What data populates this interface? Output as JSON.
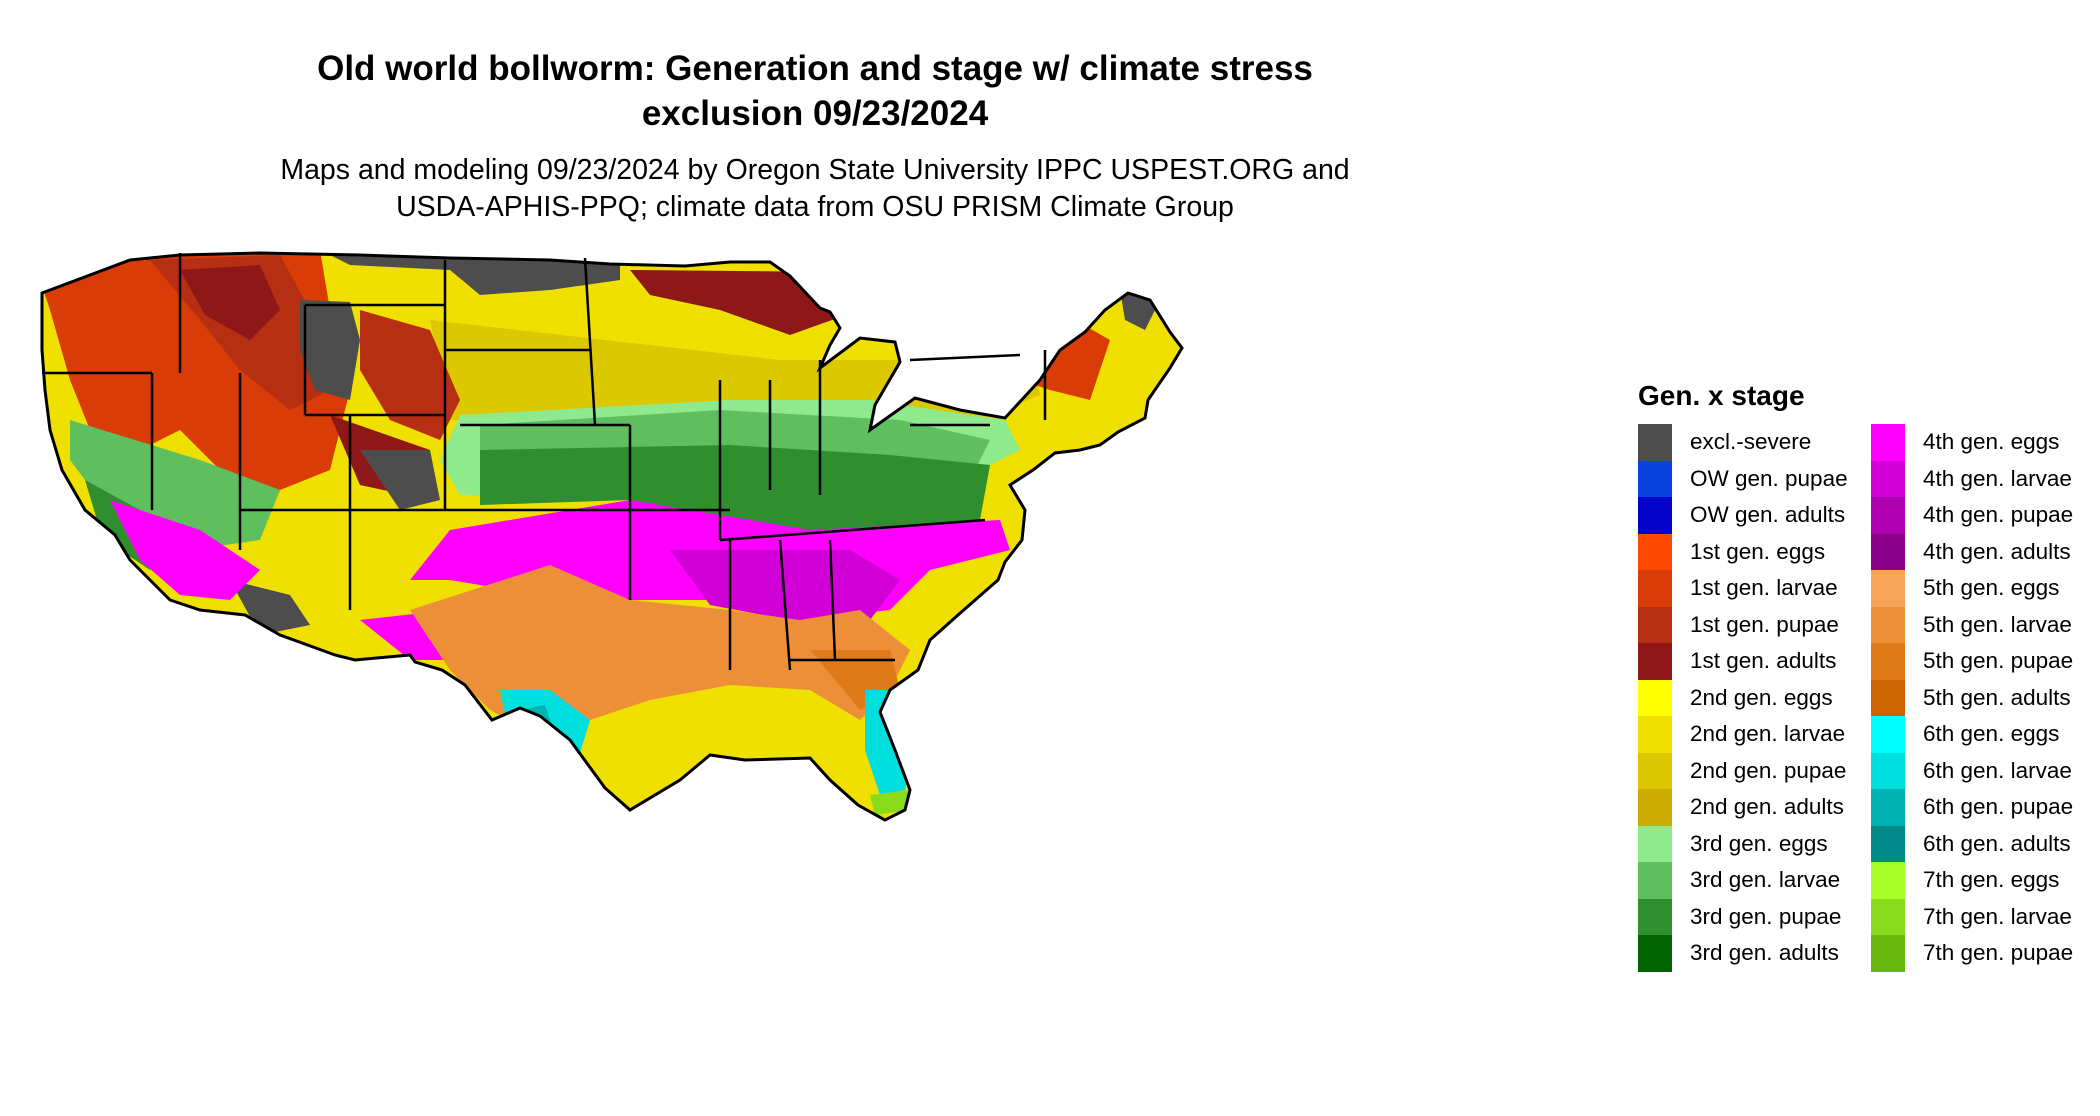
{
  "title_line1": "Old world bollworm: Generation and stage w/ climate stress",
  "title_line2": "exclusion 09/23/2024",
  "subtitle_line1": "Maps and modeling 09/23/2024 by Oregon State University IPPC USPEST.ORG and",
  "subtitle_line2": "USDA-APHIS-PPQ; climate data from OSU PRISM Climate Group",
  "legend": {
    "title": "Gen. x stage",
    "items": [
      {
        "label": "excl.-severe",
        "color": "#4d4d4d"
      },
      {
        "label": "OW gen. pupae",
        "color": "#0a42df"
      },
      {
        "label": "OW gen. adults",
        "color": "#0202c8"
      },
      {
        "label": "1st gen. eggs",
        "color": "#fd4a00"
      },
      {
        "label": "1st gen. larvae",
        "color": "#d93c06"
      },
      {
        "label": "1st gen. pupae",
        "color": "#b72f12"
      },
      {
        "label": "1st gen. adults",
        "color": "#8e1818"
      },
      {
        "label": "2nd gen. eggs",
        "color": "#ffff00"
      },
      {
        "label": "2nd gen. larvae",
        "color": "#efe000"
      },
      {
        "label": "2nd gen. pupae",
        "color": "#dcc800"
      },
      {
        "label": "2nd gen. adults",
        "color": "#ccac00"
      },
      {
        "label": "3rd gen. eggs",
        "color": "#8eea8c"
      },
      {
        "label": "3rd gen. larvae",
        "color": "#5fbf5f"
      },
      {
        "label": "3rd gen. pupae",
        "color": "#2f8f2f"
      },
      {
        "label": "3rd gen. adults",
        "color": "#006400"
      },
      {
        "label": "4th gen. eggs",
        "color": "#ff00ff"
      },
      {
        "label": "4th gen. larvae",
        "color": "#d000d6"
      },
      {
        "label": "4th gen. pupae",
        "color": "#ae00b0"
      },
      {
        "label": "4th gen. adults",
        "color": "#8a008a"
      },
      {
        "label": "5th gen. eggs",
        "color": "#f7a45a"
      },
      {
        "label": "5th gen. larvae",
        "color": "#ec8f38"
      },
      {
        "label": "5th gen. pupae",
        "color": "#df7a18"
      },
      {
        "label": "5th gen. adults",
        "color": "#cc6400"
      },
      {
        "label": "6th gen. eggs",
        "color": "#00ffff"
      },
      {
        "label": "6th gen. larvae",
        "color": "#00dede"
      },
      {
        "label": "6th gen. pupae",
        "color": "#00b2b2"
      },
      {
        "label": "6th gen. adults",
        "color": "#008b8b"
      },
      {
        "label": "7th gen. eggs",
        "color": "#a8ff2a"
      },
      {
        "label": "7th gen. larvae",
        "color": "#88dc1c"
      },
      {
        "label": "7th gen. pupae",
        "color": "#69b80e"
      }
    ]
  },
  "map": {
    "regions": [
      {
        "name": "excl.-severe",
        "color": "#4d4d4d"
      },
      {
        "name": "1st gen. larvae",
        "color": "#d93c06"
      },
      {
        "name": "1st gen. pupae",
        "color": "#b72f12"
      },
      {
        "name": "1st gen. adults",
        "color": "#8e1818"
      },
      {
        "name": "2nd gen. larvae",
        "color": "#efe000"
      },
      {
        "name": "2nd gen. pupae",
        "color": "#dcc800"
      },
      {
        "name": "3rd gen. eggs",
        "color": "#8eea8c"
      },
      {
        "name": "3rd gen. larvae",
        "color": "#5fbf5f"
      },
      {
        "name": "3rd gen. pupae",
        "color": "#2f8f2f"
      },
      {
        "name": "4th gen. eggs",
        "color": "#ff00ff"
      },
      {
        "name": "4th gen. larvae",
        "color": "#d000d6"
      },
      {
        "name": "5th gen. larvae",
        "color": "#ec8f38"
      },
      {
        "name": "5th gen. pupae",
        "color": "#df7a18"
      },
      {
        "name": "6th gen. larvae",
        "color": "#00dede"
      },
      {
        "name": "6th gen. pupae",
        "color": "#00b2b2"
      },
      {
        "name": "7th gen. larvae",
        "color": "#88dc1c"
      }
    ]
  }
}
